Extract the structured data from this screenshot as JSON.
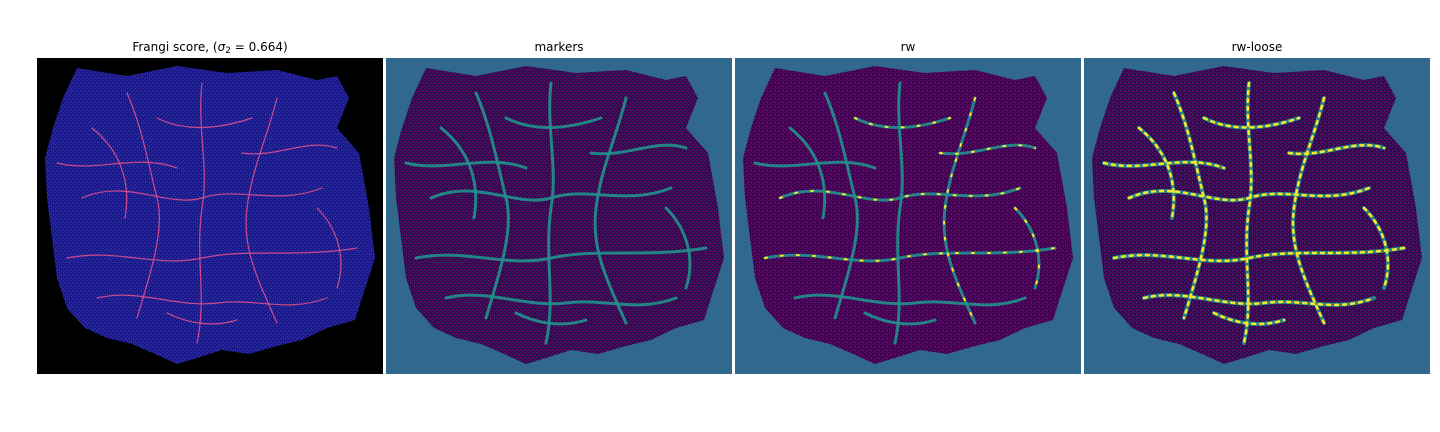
{
  "panels": [
    {
      "id": "frangi",
      "title_pre": "Frangi score, (",
      "title_sigma": "σ",
      "title_sub": "2",
      "title_post": " = 0.664)"
    },
    {
      "id": "markers",
      "title": "markers"
    },
    {
      "id": "rw",
      "title": "rw"
    },
    {
      "id": "rw-loose",
      "title": "rw-loose"
    }
  ],
  "colors": {
    "frangi_background": "#000000",
    "frangi_tissue": "#1a1a8c",
    "frangi_vessel": "#e0508a",
    "segment_background": "#31688e",
    "segment_tissue": "#440154",
    "segment_vessel": "#21918c",
    "segment_highlight": "#fde725"
  }
}
